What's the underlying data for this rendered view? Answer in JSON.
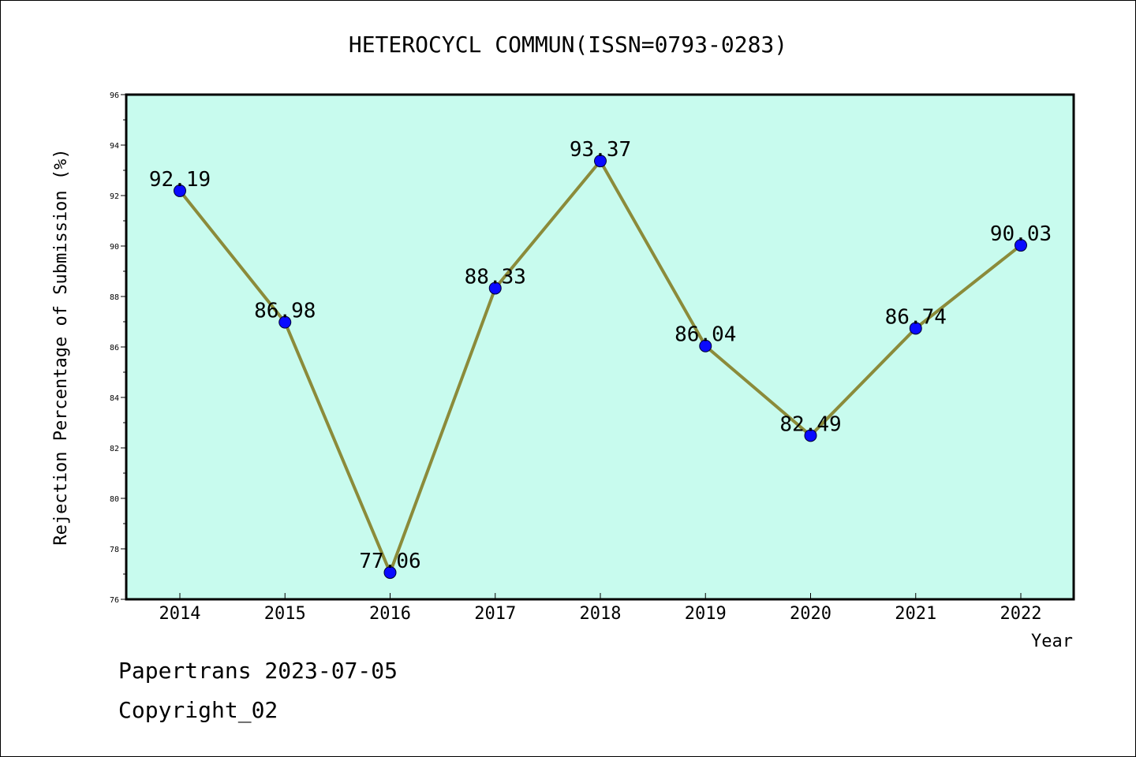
{
  "chart_data": {
    "type": "line",
    "title": "HETEROCYCL COMMUN(ISSN=0793-0283)",
    "xlabel": "Year",
    "ylabel": "Rejection Percentage of Submission (%)",
    "ylim": [
      76,
      96
    ],
    "yticks": [
      76,
      78,
      80,
      82,
      84,
      86,
      88,
      90,
      92,
      94,
      96
    ],
    "categories": [
      "2014",
      "2015",
      "2016",
      "2017",
      "2018",
      "2019",
      "2020",
      "2021",
      "2022"
    ],
    "values": [
      92.19,
      86.98,
      77.06,
      88.33,
      93.37,
      86.04,
      82.49,
      86.74,
      90.03
    ],
    "data_labels": [
      "92.19",
      "86.98",
      "77.06",
      "88.33",
      "93.37",
      "86.04",
      "82.49",
      "86.74",
      "90.03"
    ],
    "grid": false,
    "colors": {
      "plot_background": "#c8fbee",
      "line": "#8b8b3a",
      "marker": "#0a0aff"
    }
  },
  "footer": {
    "source": "Papertrans 2023-07-05",
    "copyright": "Copyright_02"
  }
}
